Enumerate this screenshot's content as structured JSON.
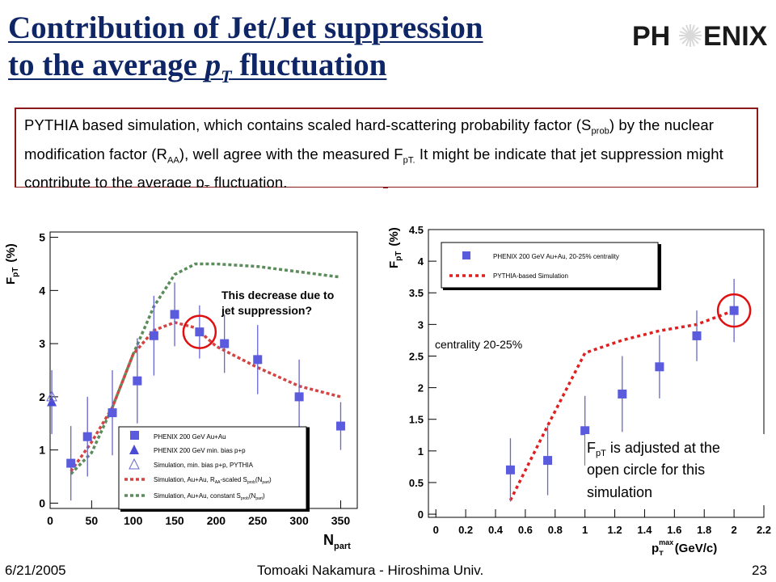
{
  "slide": {
    "title_line1": "Contribution of Jet/Jet suppression",
    "title_line2_pre": "to the average ",
    "title_line2_p": "p",
    "title_line2_sub": "T",
    "title_line2_post": " fluctuation",
    "logo_left": "PH",
    "logo_right": "ENIX",
    "box": {
      "p1": "PYTHIA based simulation, which contains scaled hard-scattering probability factor (S",
      "s1": "prob",
      "p2": ") by the nuclear modification factor (R",
      "s2": "AA",
      "p3": "), well agree with the measured F",
      "s3": "pT.",
      "p4": " It might be indicate that jet suppression might contribute to the average p",
      "s4": "T",
      "p5": " fluctuation."
    }
  },
  "footer": {
    "date": "6/21/2005",
    "author": "Tomoaki Nakamura - Hiroshima Univ.",
    "page": "23"
  },
  "chart_data": [
    {
      "type": "scatter",
      "ylabel": "F",
      "ylabel_sub": "pT",
      "ylabel_unit": "(%)",
      "xlabel": "N",
      "xlabel_sub": "part",
      "xlim": [
        0,
        370
      ],
      "ylim": [
        -0.1,
        5.1
      ],
      "xticks": [
        "0",
        "50",
        "100",
        "150",
        "200",
        "250",
        "300",
        "350"
      ],
      "yticks": [
        "0",
        "1",
        "2",
        "3",
        "4",
        "5"
      ],
      "annotation_line1": "This decrease due to",
      "annotation_line2": "jet suppression?",
      "circled_point": [
        180,
        3.22
      ],
      "legend": [
        "PHENIX 200 GeV Au+Au",
        "PHENIX 200 GeV min. bias p+p",
        "Simulation, min. bias p+p, PYTHIA",
        "Simulation, Au+Au, R",
        "Simulation, Au+Au, constant S"
      ],
      "legend_tail4": "-scaled S",
      "legend_sub4a": "AA",
      "legend_paren4": "(N",
      "legend_tail5": "(N",
      "legend_sub_prob": "prob",
      "legend_sub_part": "part",
      "legend_close": ")",
      "series": [
        {
          "name": "PHENIX 200 GeV Au+Au",
          "x": [
            25,
            45,
            75,
            105,
            125,
            150,
            180,
            210,
            250,
            300,
            350
          ],
          "y": [
            0.75,
            1.25,
            1.7,
            2.3,
            3.15,
            3.55,
            3.22,
            3.0,
            2.7,
            2.0,
            1.45
          ],
          "err": [
            0.7,
            0.75,
            0.8,
            0.8,
            0.75,
            0.6,
            0.5,
            0.55,
            0.65,
            0.7,
            0.45
          ]
        },
        {
          "name": "PHENIX 200 GeV min. bias p+p",
          "x": [
            2
          ],
          "y": [
            1.9
          ],
          "err": [
            0.6
          ]
        },
        {
          "name": "Simulation, min. bias p+p, PYTHIA",
          "x": [
            2
          ],
          "y": [
            2.0
          ]
        },
        {
          "name": "Simulation, Au+Au, RAA-scaled Sprob(Npart)",
          "x": [
            25,
            50,
            75,
            100,
            125,
            150,
            175,
            200,
            250,
            300,
            350
          ],
          "y": [
            0.6,
            1.15,
            1.8,
            2.8,
            3.25,
            3.4,
            3.3,
            2.95,
            2.55,
            2.2,
            2.0
          ]
        },
        {
          "name": "Simulation, Au+Au, constant Sprob(Npart)",
          "x": [
            25,
            50,
            75,
            100,
            125,
            150,
            175,
            200,
            250,
            300,
            350
          ],
          "y": [
            0.55,
            0.95,
            1.8,
            2.8,
            3.7,
            4.3,
            4.5,
            4.5,
            4.45,
            4.35,
            4.25
          ]
        }
      ]
    },
    {
      "type": "scatter",
      "ylabel": "F",
      "ylabel_sub": "pT",
      "ylabel_unit": "(%)",
      "xlabel": "p",
      "xlabel_sup": "max",
      "xlabel_sub": "T",
      "xlabel_unit": "(GeV/c)",
      "xlim": [
        -0.05,
        2.2
      ],
      "ylim": [
        -0.05,
        4.5
      ],
      "xticks": [
        "0",
        "0.2",
        "0.4",
        "0.6",
        "0.8",
        "1",
        "1.2",
        "1.4",
        "1.6",
        "1.8",
        "2",
        "2.2"
      ],
      "yticks": [
        "0",
        "0.5",
        "1",
        "1.5",
        "2",
        "2.5",
        "3",
        "3.5",
        "4",
        "4.5"
      ],
      "annotation": "centrality 20-25%",
      "note_line1_pre": "F",
      "note_line1_sub": "pT",
      "note_line1_post": " is adjusted at the",
      "note_line2": "open circle for this",
      "note_line3": "simulation",
      "circled_point": [
        2.0,
        3.22
      ],
      "legend": [
        "PHENIX 200 GeV Au+Au, 20-25% centrality",
        "PYTHIA-based Simulation"
      ],
      "series": [
        {
          "name": "PHENIX 200 GeV Au+Au, 20-25% centrality",
          "x": [
            0.5,
            0.75,
            1.0,
            1.25,
            1.5,
            1.75,
            2.0
          ],
          "y": [
            0.7,
            0.85,
            1.32,
            1.9,
            2.33,
            2.82,
            3.22
          ],
          "err": [
            0.5,
            0.55,
            0.55,
            0.6,
            0.5,
            0.4,
            0.5
          ]
        },
        {
          "name": "PYTHIA-based Simulation",
          "x": [
            0.5,
            0.75,
            1.0,
            1.25,
            1.5,
            1.75,
            2.0
          ],
          "y": [
            0.22,
            1.4,
            2.55,
            2.75,
            2.9,
            3.0,
            3.22
          ]
        }
      ]
    }
  ]
}
